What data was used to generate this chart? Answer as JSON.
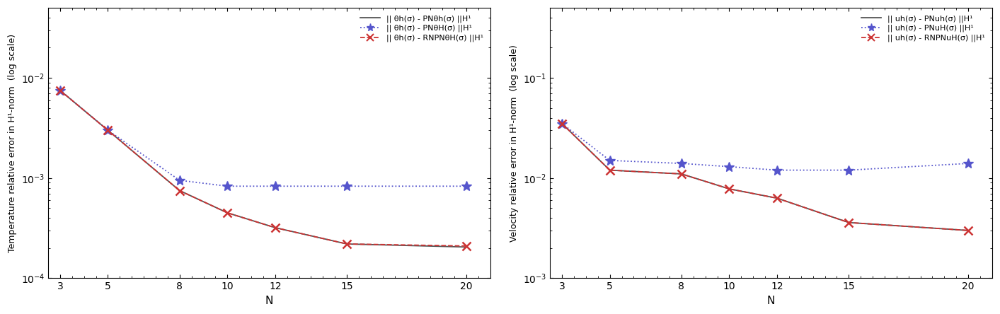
{
  "N": [
    3,
    5,
    8,
    10,
    12,
    15,
    20
  ],
  "left_ylabel": "Temperature relative error in H¹-norm  (log scale)",
  "left_xlabel": "N",
  "right_ylabel": "Velocity relative error in H¹-norm  (log scale)",
  "right_xlabel": "N",
  "left_ylim": [
    0.0001,
    0.05
  ],
  "right_ylim": [
    0.001,
    0.5
  ],
  "left_yticks": [
    0.0001,
    0.001,
    0.01
  ],
  "right_yticks": [
    0.001,
    0.01,
    0.1
  ],
  "left_line1": [
    0.0075,
    0.003,
    0.00075,
    0.00045,
    0.00032,
    0.00022,
    0.000205
  ],
  "left_line2": [
    0.0075,
    0.003,
    0.00095,
    0.00083,
    0.00083,
    0.00083,
    0.00083
  ],
  "left_line3": [
    0.0075,
    0.003,
    0.00075,
    0.00045,
    0.00032,
    0.00022,
    0.00021
  ],
  "right_line1": [
    0.035,
    0.012,
    0.011,
    0.0078,
    0.0063,
    0.0036,
    0.003
  ],
  "right_line2": [
    0.035,
    0.015,
    0.014,
    0.013,
    0.012,
    0.012,
    0.014
  ],
  "right_line3": [
    0.035,
    0.012,
    0.011,
    0.0078,
    0.0063,
    0.0036,
    0.003
  ],
  "left_legend1": "|| θh(σ) - PNθh(σ) ||H¹",
  "left_legend2": "|| θh(σ) - PNθH(σ) ||H¹",
  "left_legend3": "|| θh(σ) - RNPNθH(σ) ||H¹",
  "right_legend1": "|| uh(σ) - PNuh(σ) ||H¹",
  "right_legend2": "|| uh(σ) - PNuH(σ) ||H¹",
  "right_legend3": "|| uh(σ) - RNPNuH(σ) ||H¹",
  "color_black": "#555555",
  "color_blue": "#5555cc",
  "color_red": "#cc3333",
  "color_darkred": "#8b0000",
  "xticks": [
    3,
    5,
    8,
    10,
    12,
    15,
    20
  ],
  "fig_width": 14.13,
  "fig_height": 4.44,
  "dpi": 100
}
